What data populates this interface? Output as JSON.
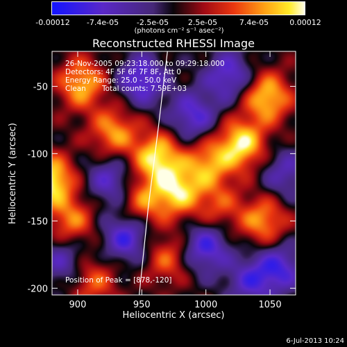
{
  "colorbar": {
    "ticks": [
      "-0.00012",
      "-7.4e-05",
      "-2.5e-05",
      "2.5e-05",
      "7.4e-05",
      "0.00012"
    ],
    "units": "(photons cm⁻² s⁻¹ asec⁻²)"
  },
  "chart_data": {
    "type": "heatmap",
    "title": "Reconstructed RHESSI Image",
    "xlabel": "Heliocentric X (arcsec)",
    "ylabel": "Heliocentric Y (arcsec)",
    "xlim": [
      880,
      1070
    ],
    "ylim": [
      -205,
      -24
    ],
    "x_ticks": [
      "900",
      "950",
      "1000",
      "1050"
    ],
    "y_ticks": [
      "-50",
      "-100",
      "-150",
      "-200"
    ],
    "x_tick_values": [
      900,
      950,
      1000,
      1050
    ],
    "y_tick_values": [
      -50,
      -100,
      -150,
      -200
    ],
    "colorbar_range": [
      -0.00012,
      0.00012
    ],
    "bright_sources": [
      {
        "x": 878,
        "y": -120,
        "v": 0.00012
      },
      {
        "x": 962,
        "y": -103,
        "v": 0.00011
      },
      {
        "x": 978,
        "y": -128,
        "v": 0.0001
      },
      {
        "x": 1028,
        "y": -93,
        "v": 0.00011
      },
      {
        "x": 1048,
        "y": -58,
        "v": 0.0001
      },
      {
        "x": 928,
        "y": -84,
        "v": 8e-05
      },
      {
        "x": 1002,
        "y": -108,
        "v": 8e-05
      },
      {
        "x": 1045,
        "y": -150,
        "v": 8e-05
      },
      {
        "x": 950,
        "y": -137,
        "v": 7e-05
      },
      {
        "x": 903,
        "y": -48,
        "v": 9e-05
      },
      {
        "x": 895,
        "y": -150,
        "v": 7e-05
      },
      {
        "x": 970,
        "y": -178,
        "v": 6e-05
      },
      {
        "x": 912,
        "y": -195,
        "v": 6e-05
      },
      {
        "x": 1010,
        "y": -140,
        "v": 5e-05
      }
    ],
    "dark_sources": [
      {
        "x": 950,
        "y": -45,
        "v": -9e-05
      },
      {
        "x": 1018,
        "y": -42,
        "v": -8e-05
      },
      {
        "x": 990,
        "y": -72,
        "v": -8e-05
      },
      {
        "x": 938,
        "y": -162,
        "v": -9e-05
      },
      {
        "x": 1000,
        "y": -170,
        "v": -9e-05
      },
      {
        "x": 1058,
        "y": -185,
        "v": -8e-05
      },
      {
        "x": 925,
        "y": -120,
        "v": -7e-05
      },
      {
        "x": 1062,
        "y": -115,
        "v": -6e-05
      },
      {
        "x": 888,
        "y": -180,
        "v": -6e-05
      },
      {
        "x": 1035,
        "y": -195,
        "v": -7e-05
      }
    ],
    "limb_curve": [
      {
        "x": 970,
        "y": -24
      },
      {
        "x": 963,
        "y": -80
      },
      {
        "x": 955,
        "y": -140
      },
      {
        "x": 948,
        "y": -205
      }
    ],
    "annotations": [
      "26-Nov-2005 09:23:18.000 to 09:29:18.000",
      "Detectors: 4F 5F 6F 7F 8F, Att 0",
      "Energy Range: 25.0 - 50.0 keV",
      "Clean",
      "Total counts: 7.59E+03",
      "Position of Peak = [878,-120]"
    ]
  },
  "footer": {
    "date": "6-Jul-2013 10:24"
  }
}
